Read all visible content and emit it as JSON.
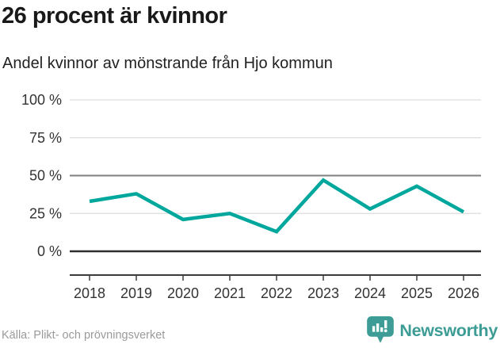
{
  "chart_data": {
    "type": "line",
    "title": "26 procent är kvinnor",
    "subtitle": "Andel kvinnor av mönstrande från Hjo kommun",
    "x": [
      "2018",
      "2019",
      "2020",
      "2021",
      "2022",
      "2023",
      "2024",
      "2025",
      "2026"
    ],
    "series": [
      {
        "name": "Andel kvinnor av mönstrande",
        "values": [
          33,
          38,
          21,
          25,
          13,
          47,
          28,
          43,
          26
        ]
      }
    ],
    "unit": "%",
    "ylim": [
      0,
      100
    ],
    "yticks": [
      0,
      25,
      50,
      75,
      100
    ],
    "ytick_labels": [
      "0 %",
      "25 %",
      "50 %",
      "75 %",
      "100 %"
    ],
    "xlabel": "",
    "ylabel": "",
    "grid": "horizontal",
    "legend": "none",
    "line_color": "#00a79d"
  },
  "footer": {
    "source": "Källa: Plikt- och prövningsverket",
    "brand": "Newsworthy"
  },
  "colors": {
    "accent": "#00a79d",
    "brand_teal": "#3d9c95",
    "grid_light": "#dddddd",
    "grid_mid": "#7f7f7f",
    "zero_line": "#2e2e2e",
    "axis": "#3c3c3c",
    "title_text": "#191919",
    "muted_text": "#9a9a9a"
  }
}
